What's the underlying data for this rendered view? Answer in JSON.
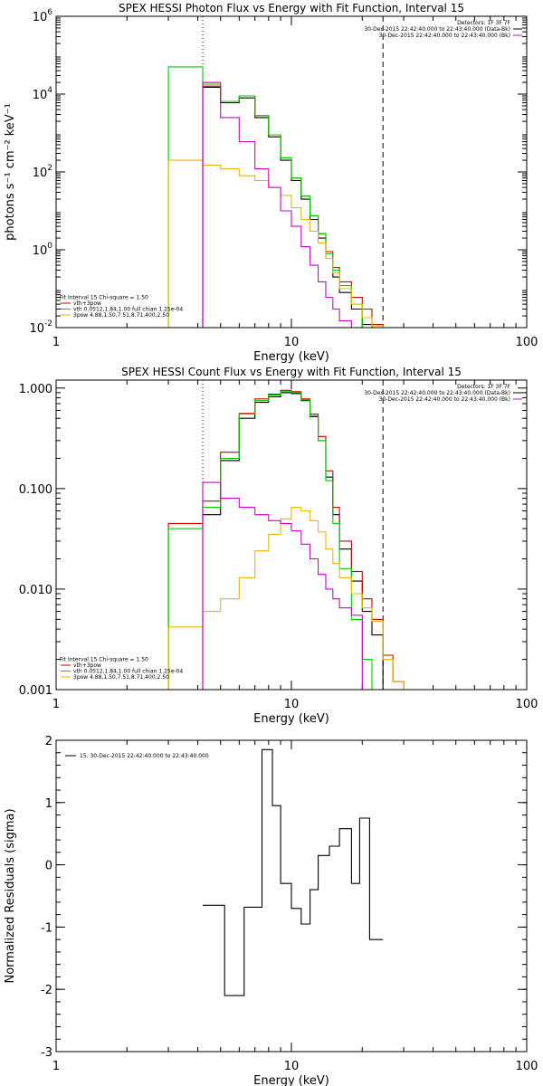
{
  "chart_data": [
    {
      "type": "line",
      "title": "SPEX HESSI Photon Flux vs Energy with Fit Function, Interval 15",
      "xlabel": "Energy (keV)",
      "ylabel": "photons s⁻¹ cm⁻² keV⁻¹",
      "xscale": "log",
      "yscale": "log",
      "xlim": [
        1,
        100
      ],
      "ylim": [
        0.01,
        1000000
      ],
      "x_ticks": [
        {
          "v": 1,
          "label": "1"
        },
        {
          "v": 10,
          "label": "10"
        },
        {
          "v": 100,
          "label": "100"
        }
      ],
      "y_ticks": [
        {
          "v": 0.01,
          "base": "10",
          "exp": "-2"
        },
        {
          "v": 1,
          "base": "10",
          "exp": "0"
        },
        {
          "v": 100,
          "base": "10",
          "exp": "2"
        },
        {
          "v": 10000,
          "base": "10",
          "exp": "4"
        },
        {
          "v": 1000000,
          "base": "10",
          "exp": "6"
        }
      ],
      "vlines": [
        {
          "x": 4.2,
          "style": "dotted",
          "color": "#000000"
        },
        {
          "x": 24.5,
          "style": "dashed",
          "color": "#000000"
        }
      ],
      "legend_top_right": [
        {
          "text": "Detectors: 1F 3F 7F",
          "color": "",
          "line": false
        },
        {
          "text": "30-Dec-2015 22:42:40.000 to 22:43:40.000 (Data-Bk)",
          "color": "#000000",
          "line": true
        },
        {
          "text": "30-Dec-2015 22:42:40.000 to 22:43:40.000 (Bk)",
          "color": "#cc00cc",
          "line": true
        }
      ],
      "legend_bottom_left": [
        {
          "text": "Fit Interval 15   Chi-square = 1.50",
          "color": "",
          "line": false
        },
        {
          "text": "vth+3pow",
          "color": "#cc0000",
          "line": true
        },
        {
          "text": "vth 0.0512,1.84,1.00  full chian 1.25e-04",
          "color": "#00cc00",
          "line": true
        },
        {
          "text": "3pow 4.88,1.50,7.51,8.71,400,2.50",
          "color": "#e6b800",
          "line": true
        }
      ],
      "edges": [
        3,
        4.2,
        5,
        6,
        7,
        8,
        9,
        10,
        11,
        12,
        13,
        14,
        15,
        16,
        18,
        20,
        22,
        24.5,
        27,
        30
      ],
      "series": [
        {
          "color": "#000000",
          "values": [
            null,
            15000,
            6000,
            8000,
            2500,
            800,
            200,
            60,
            20,
            6,
            2,
            0.6,
            0.2,
            0.08,
            0.03,
            0.012,
            0.0045,
            null,
            null
          ]
        },
        {
          "color": "#cc0000",
          "values": [
            null,
            16000,
            6500,
            9000,
            2800,
            900,
            230,
            70,
            24,
            7.5,
            2.6,
            0.9,
            0.35,
            0.15,
            0.06,
            0.03,
            0.012,
            0.005,
            null
          ]
        },
        {
          "color": "#00cc00",
          "values": [
            50000,
            18000,
            6500,
            9000,
            2800,
            900,
            230,
            70,
            24,
            7.5,
            2.6,
            0.8,
            0.3,
            0.12,
            0.04,
            0.01,
            0.004,
            null,
            null
          ]
        },
        {
          "color": "#e6b800",
          "values": [
            200,
            150,
            120,
            80,
            60,
            40,
            25,
            12,
            6,
            3,
            1.5,
            0.6,
            0.25,
            0.1,
            0.04,
            0.018,
            0.011,
            0.008,
            null
          ]
        },
        {
          "color": "#cc00cc",
          "values": [
            null,
            20000,
            2500,
            600,
            120,
            40,
            10,
            4,
            1.2,
            0.4,
            0.15,
            0.06,
            0.03,
            0.015,
            null,
            null,
            null,
            null,
            null
          ]
        }
      ]
    },
    {
      "type": "line",
      "title": "SPEX HESSI Count Flux vs Energy with Fit Function, Interval 15",
      "xlabel": "Energy (keV)",
      "ylabel": "",
      "xscale": "log",
      "yscale": "log",
      "xlim": [
        1,
        100
      ],
      "ylim": [
        0.001,
        1.2
      ],
      "x_ticks": [
        {
          "v": 1,
          "label": "1"
        },
        {
          "v": 10,
          "label": "10"
        },
        {
          "v": 100,
          "label": "100"
        }
      ],
      "y_ticks": [
        {
          "v": 0.001,
          "label": "0.001"
        },
        {
          "v": 0.01,
          "label": "0.010"
        },
        {
          "v": 0.1,
          "label": "0.100"
        },
        {
          "v": 1,
          "label": "1.000"
        }
      ],
      "vlines": [
        {
          "x": 4.2,
          "style": "dotted",
          "color": "#000000"
        },
        {
          "x": 24.5,
          "style": "dashed",
          "color": "#000000"
        }
      ],
      "legend_top_right": [
        {
          "text": "Detectors: 1F 3F 7F",
          "color": "",
          "line": false
        },
        {
          "text": "30-Dec-2015 22:42:40.000 to 22:43:40.000 (Data-Bk)",
          "color": "#000000",
          "line": true
        },
        {
          "text": "30-Dec-2015 22:42:40.000 to 22:43:40.000 (Bk)",
          "color": "#cc00cc",
          "line": true
        }
      ],
      "legend_bottom_left": [
        {
          "text": "Fit Interval 15   Chi-square = 1.50",
          "color": "",
          "line": false
        },
        {
          "text": "vth+3pow",
          "color": "#cc0000",
          "line": true
        },
        {
          "text": "vth 0.0512,1.84,1.00  full chian 1.25e-04",
          "color": "#00cc00",
          "line": true
        },
        {
          "text": "3pow 4.88,1.50,7.51,8.71,400,2.50",
          "color": "#e6b800",
          "line": true
        }
      ],
      "edges": [
        3,
        4.2,
        5,
        6,
        7,
        8,
        9,
        10,
        11,
        12,
        13,
        14,
        15,
        16,
        18,
        20,
        22,
        24.5,
        27,
        30
      ],
      "series": [
        {
          "color": "#000000",
          "values": [
            null,
            0.055,
            0.19,
            0.5,
            0.72,
            0.82,
            0.9,
            0.88,
            0.75,
            0.52,
            0.3,
            0.13,
            0.055,
            0.025,
            0.012,
            0.006,
            0.0035,
            null,
            null
          ]
        },
        {
          "color": "#cc0000",
          "values": [
            0.045,
            0.075,
            0.23,
            0.56,
            0.78,
            0.87,
            0.95,
            0.92,
            0.78,
            0.55,
            0.33,
            0.15,
            0.065,
            0.03,
            0.015,
            0.008,
            0.005,
            0.0022,
            0.0012
          ]
        },
        {
          "color": "#00cc00",
          "values": [
            0.04,
            0.065,
            0.2,
            0.55,
            0.75,
            0.85,
            0.92,
            0.9,
            0.76,
            0.53,
            0.3,
            0.12,
            0.045,
            0.016,
            0.005,
            0.002,
            0.001,
            null,
            null
          ]
        },
        {
          "color": "#e6b800",
          "values": [
            0.0042,
            0.006,
            0.008,
            0.013,
            0.024,
            0.035,
            0.05,
            0.065,
            0.06,
            0.048,
            0.037,
            0.025,
            0.018,
            0.013,
            0.009,
            0.0065,
            0.0048,
            0.002,
            0.0012
          ]
        },
        {
          "color": "#cc00cc",
          "values": [
            null,
            0.115,
            0.08,
            0.065,
            0.055,
            0.048,
            0.045,
            0.038,
            0.028,
            0.02,
            0.014,
            0.01,
            0.008,
            0.0065,
            0.0055,
            null,
            null,
            null,
            null
          ]
        }
      ]
    },
    {
      "type": "line",
      "title": "",
      "xlabel": "Energy (keV)",
      "ylabel": "Normalized Residuals (sigma)",
      "xscale": "log",
      "yscale": "linear",
      "xlim": [
        1,
        100
      ],
      "ylim": [
        -3,
        2
      ],
      "x_ticks": [
        {
          "v": 1,
          "label": "1"
        },
        {
          "v": 10,
          "label": "10"
        },
        {
          "v": 100,
          "label": "100"
        }
      ],
      "y_ticks": [
        {
          "v": -3,
          "label": "-3"
        },
        {
          "v": -2,
          "label": "-2"
        },
        {
          "v": -1,
          "label": "-1"
        },
        {
          "v": 0,
          "label": "0"
        },
        {
          "v": 1,
          "label": "1"
        },
        {
          "v": 2,
          "label": "2"
        }
      ],
      "vlines": [],
      "legend_top_left": [
        {
          "text": "15. 30-Dec-2015 22:42:40.000 to 22:43:40.000",
          "color": "#000000",
          "line": true
        }
      ],
      "edges": [
        4.2,
        5.2,
        6.3,
        7.5,
        8.3,
        9,
        10,
        11,
        12,
        13,
        14.5,
        16,
        18,
        19.5,
        21.5,
        24.5
      ],
      "series": [
        {
          "color": "#000000",
          "values": [
            -0.65,
            -2.1,
            -0.68,
            1.85,
            0.95,
            -0.3,
            -0.7,
            -0.95,
            -0.4,
            0.15,
            0.3,
            0.58,
            -0.3,
            0.75,
            -1.2
          ]
        }
      ]
    }
  ]
}
